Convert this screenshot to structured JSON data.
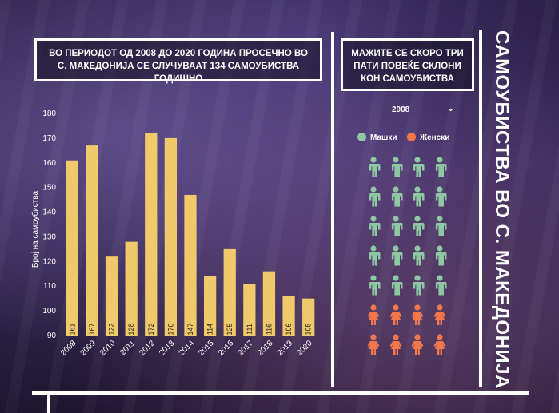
{
  "main_title": "ВО ПЕРИОДОТ ОД 2008 ДО 2020 ГОДИНА ПРОСЕЧНО ВО С. МАКЕДОНИЈА СЕ СЛУЧУВААТ 134 САМОУБИСТВА ГОДИШНО",
  "side_title": "МАЖИТЕ СЕ СКОРО ТРИ ПАТИ ПОВЕЌЕ СКЛОНИ КОН САМОУБИСТВА",
  "vertical_title": "САМОУБИСТВА ВО С. МАКЕДОНИЈА",
  "year_select": {
    "value": "2008",
    "icon": "chevron-down-icon"
  },
  "legend": {
    "male": "Машки",
    "female": "Женски"
  },
  "colors": {
    "bar": "#f0c96a",
    "male": "#8ec8a3",
    "female": "#f2784b"
  },
  "pictogram": {
    "male_count": 20,
    "female_count": 8,
    "columns": 4
  },
  "chart_data": {
    "type": "bar",
    "categories": [
      "2008",
      "2009",
      "2010",
      "2011",
      "2012",
      "2013",
      "2014",
      "2015",
      "2016",
      "2017",
      "2018",
      "2019",
      "2020"
    ],
    "values": [
      161,
      167,
      122,
      128,
      172,
      170,
      147,
      114,
      125,
      111,
      116,
      106,
      105
    ],
    "xlabel": "",
    "ylabel": "Број на самоубиства",
    "ylim": [
      90,
      180
    ],
    "yticks": [
      90,
      100,
      110,
      120,
      130,
      140,
      150,
      160,
      170,
      180
    ]
  }
}
